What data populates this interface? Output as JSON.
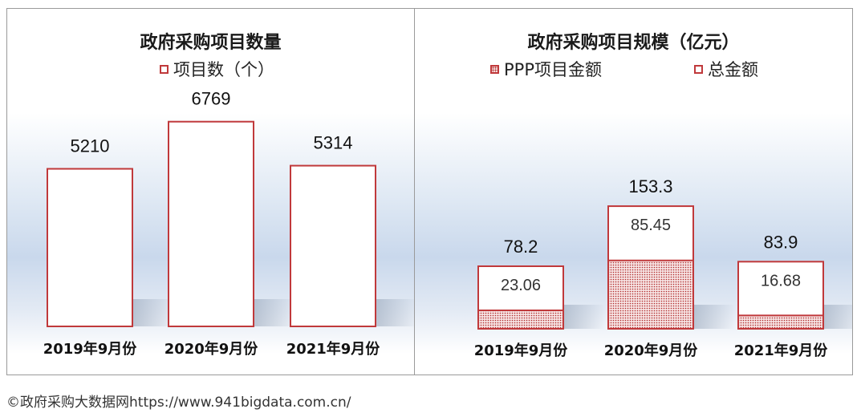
{
  "chart_data": [
    {
      "type": "bar",
      "title": "政府采购项目数量",
      "categories": [
        "2019年9月份",
        "2020年9月份",
        "2021年9月份"
      ],
      "series": [
        {
          "name": "项目数（个）",
          "values": [
            5210,
            6769,
            5314
          ]
        }
      ],
      "ylim": [
        0,
        10500
      ],
      "grid": false,
      "legend": "top-center"
    },
    {
      "type": "bar",
      "title": "政府采购项目规模（亿元）",
      "categories": [
        "2019年9月份",
        "2020年9月份",
        "2021年9月份"
      ],
      "series": [
        {
          "name": "PPP项目金额",
          "values": [
            23.06,
            85.45,
            16.68
          ]
        },
        {
          "name": "总金额",
          "values": [
            78.2,
            153.3,
            83.9
          ]
        }
      ],
      "ylim": [
        0,
        400
      ],
      "grid": false,
      "legend": "top"
    }
  ],
  "colors": {
    "bar_border": "#c0393b",
    "ppp_fill": "#b02a2a"
  },
  "credit": "©政府采购大数据网https://www.941bigdata.com.cn/"
}
